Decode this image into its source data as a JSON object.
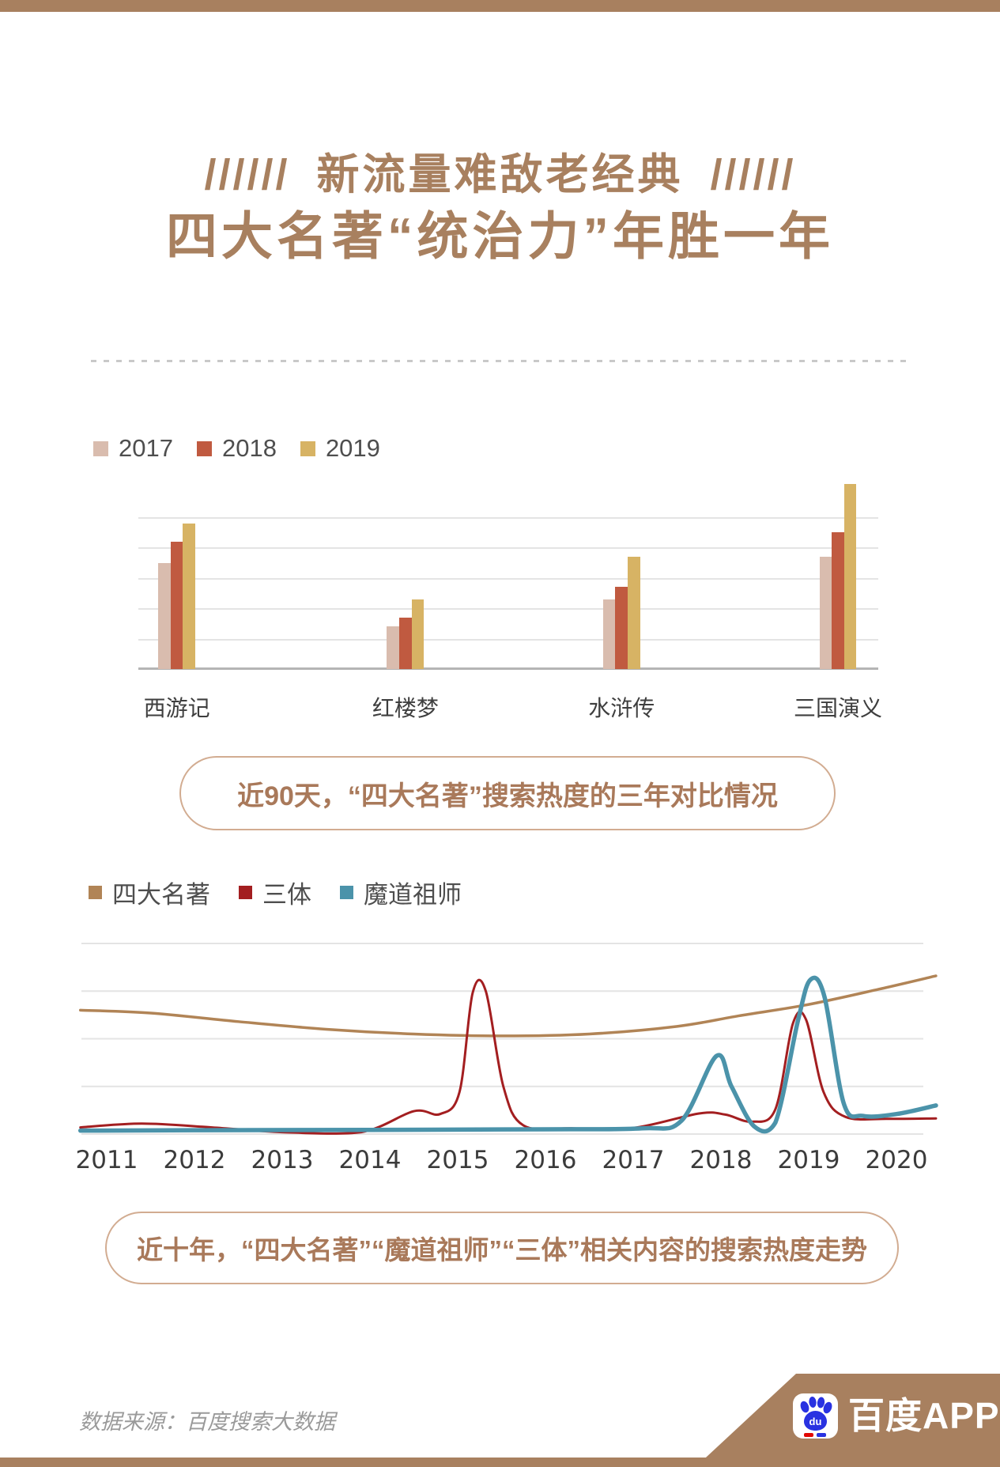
{
  "theme": {
    "brand_brown": "#a8805f",
    "title_brown": "#a8805f",
    "caption_text": "#a9795a",
    "caption_border": "#d2ac91",
    "grid_light": "#e4e4e4",
    "grid_dark": "#b5b5b5",
    "legend_text": "#4e4e4e",
    "source_gray": "#9a9a9a",
    "baidu_blue": "#2932e1",
    "baidu_red": "#e10602"
  },
  "header": {
    "slashes_left": "//////",
    "title_line1": "新流量难敌老经典",
    "slashes_right": "//////",
    "title_line2": "四大名著“统治力”年胜一年"
  },
  "chart_data": [
    {
      "type": "bar",
      "title": "近90天，“四大名著”搜索热度的三年对比情况",
      "categories": [
        "西游记",
        "红楼梦",
        "水浒传",
        "三国演义"
      ],
      "series": [
        {
          "name": "2017",
          "color": "#d9bcae",
          "values": [
            3.5,
            1.4,
            2.3,
            3.7
          ]
        },
        {
          "name": "2018",
          "color": "#c05a40",
          "values": [
            4.2,
            1.7,
            2.7,
            4.5
          ]
        },
        {
          "name": "2019",
          "color": "#d7b364",
          "values": [
            4.8,
            2.3,
            3.7,
            6.1
          ]
        }
      ],
      "ylim": [
        0,
        5
      ],
      "grid": true,
      "legend_position": "top-left",
      "y_axis_labels_visible": false
    },
    {
      "type": "line",
      "title": "近十年，“四大名著”“魔道祖师”“三体”相关内容的搜索热度走势",
      "x_ticks": [
        "2011",
        "2012",
        "2013",
        "2014",
        "2015",
        "2016",
        "2017",
        "2018",
        "2019",
        "2020"
      ],
      "xlim": [
        2010.7,
        2020.45
      ],
      "ylim": [
        0,
        100
      ],
      "grid": true,
      "legend_position": "top-left",
      "series": [
        {
          "name": "四大名著",
          "color": "#b18456",
          "points": [
            [
              2010.7,
              65
            ],
            [
              2011.5,
              63.5
            ],
            [
              2012.5,
              59
            ],
            [
              2013.5,
              55
            ],
            [
              2014.5,
              52.5
            ],
            [
              2015.5,
              51.5
            ],
            [
              2016.5,
              52.5
            ],
            [
              2017.5,
              56.5
            ],
            [
              2018.2,
              62
            ],
            [
              2019,
              68
            ],
            [
              2019.8,
              76
            ],
            [
              2020.45,
              83
            ]
          ]
        },
        {
          "name": "三体",
          "color": "#a31e20",
          "points": [
            [
              2010.7,
              3.5
            ],
            [
              2011.4,
              5.5
            ],
            [
              2012.2,
              3.5
            ],
            [
              2013,
              1
            ],
            [
              2013.9,
              1
            ],
            [
              2014.5,
              12
            ],
            [
              2014.8,
              10.5
            ],
            [
              2015.02,
              22
            ],
            [
              2015.17,
              74
            ],
            [
              2015.32,
              75
            ],
            [
              2015.52,
              25
            ],
            [
              2015.75,
              4.5
            ],
            [
              2016.3,
              3
            ],
            [
              2017,
              3.2
            ],
            [
              2017.75,
              10.8
            ],
            [
              2018.05,
              10.2
            ],
            [
              2018.35,
              6.5
            ],
            [
              2018.62,
              13
            ],
            [
              2018.82,
              58
            ],
            [
              2018.97,
              60
            ],
            [
              2019.17,
              22
            ],
            [
              2019.42,
              9
            ],
            [
              2019.9,
              8
            ],
            [
              2020.45,
              8.2
            ]
          ]
        },
        {
          "name": "魔道祖师",
          "color": "#4b93aa",
          "points": [
            [
              2010.7,
              1.8
            ],
            [
              2012,
              2
            ],
            [
              2014,
              2.2
            ],
            [
              2016,
              2.5
            ],
            [
              2017.1,
              3
            ],
            [
              2017.55,
              7
            ],
            [
              2017.95,
              41
            ],
            [
              2018.12,
              25
            ],
            [
              2018.38,
              4
            ],
            [
              2018.62,
              6
            ],
            [
              2018.88,
              60
            ],
            [
              2019.02,
              81
            ],
            [
              2019.18,
              72
            ],
            [
              2019.4,
              16
            ],
            [
              2019.62,
              9.5
            ],
            [
              2020,
              10.5
            ],
            [
              2020.45,
              15
            ]
          ]
        }
      ]
    }
  ],
  "footer": {
    "source": "数据来源：百度搜索大数据",
    "logo_text": "百度APP",
    "logo_paw_text": "du"
  }
}
